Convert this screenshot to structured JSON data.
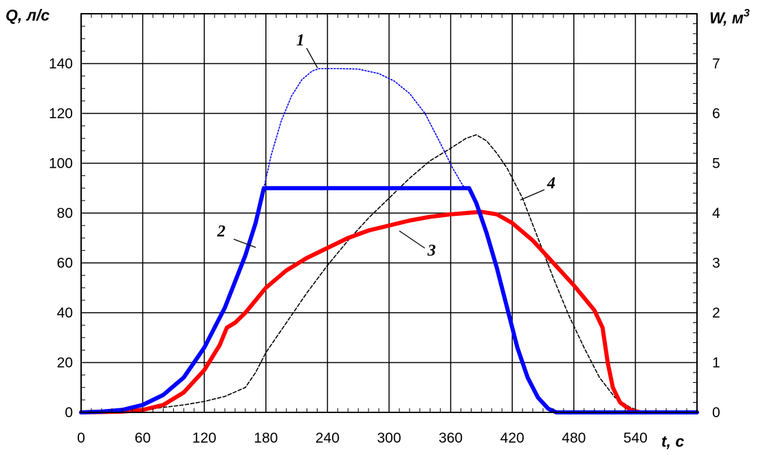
{
  "chart_data": {
    "type": "line",
    "title": "",
    "y_left_label": "Q, л/с",
    "y_right_label_base": "W, м",
    "y_right_label_sup": "3",
    "x_label": "t, с",
    "x_ticks": [
      "0",
      "60",
      "120",
      "180",
      "240",
      "300",
      "360",
      "420",
      "480",
      "540"
    ],
    "y_left_ticks": [
      "0",
      "20",
      "40",
      "60",
      "80",
      "100",
      "120",
      "140"
    ],
    "y_right_ticks": [
      "0",
      "1",
      "2",
      "3",
      "4",
      "5",
      "6",
      "7"
    ],
    "xlim": [
      0,
      600
    ],
    "ylim_left": [
      0,
      160
    ],
    "ylim_right": [
      0,
      8
    ],
    "grid": true,
    "series": [
      {
        "name": "1",
        "axis": "left",
        "color": "#0000ff",
        "style": "dotted-thin",
        "points": [
          [
            178,
            90
          ],
          [
            185,
            103
          ],
          [
            195,
            117
          ],
          [
            205,
            127
          ],
          [
            215,
            133.5
          ],
          [
            225,
            137
          ],
          [
            232,
            138
          ],
          [
            250,
            138
          ],
          [
            270,
            137.8
          ],
          [
            290,
            136
          ],
          [
            305,
            133
          ],
          [
            320,
            128
          ],
          [
            335,
            120
          ],
          [
            350,
            108
          ],
          [
            362,
            98
          ],
          [
            372,
            91
          ],
          [
            382,
            88
          ]
        ]
      },
      {
        "name": "2",
        "axis": "left",
        "color": "#0000ff",
        "style": "solid-thick",
        "points": [
          [
            0,
            0
          ],
          [
            20,
            0.3
          ],
          [
            40,
            1
          ],
          [
            60,
            3
          ],
          [
            80,
            7
          ],
          [
            100,
            14
          ],
          [
            120,
            26
          ],
          [
            140,
            42
          ],
          [
            160,
            63
          ],
          [
            170,
            76
          ],
          [
            178,
            90
          ],
          [
            240,
            90
          ],
          [
            300,
            90
          ],
          [
            340,
            90
          ],
          [
            378,
            90
          ],
          [
            385,
            84
          ],
          [
            395,
            72
          ],
          [
            405,
            58
          ],
          [
            415,
            42
          ],
          [
            425,
            26
          ],
          [
            435,
            14
          ],
          [
            445,
            6
          ],
          [
            455,
            1.5
          ],
          [
            463,
            0
          ],
          [
            600,
            0
          ]
        ]
      },
      {
        "name": "3",
        "axis": "left",
        "color": "#ff0000",
        "style": "solid-thick",
        "points": [
          [
            0,
            0
          ],
          [
            40,
            0.3
          ],
          [
            60,
            1
          ],
          [
            80,
            3
          ],
          [
            100,
            8
          ],
          [
            120,
            17
          ],
          [
            135,
            27
          ],
          [
            142,
            34
          ],
          [
            150,
            36
          ],
          [
            160,
            40
          ],
          [
            170,
            45
          ],
          [
            180,
            50
          ],
          [
            200,
            57
          ],
          [
            220,
            62
          ],
          [
            240,
            66
          ],
          [
            260,
            70
          ],
          [
            280,
            73
          ],
          [
            300,
            75
          ],
          [
            320,
            77
          ],
          [
            340,
            78.5
          ],
          [
            360,
            79.5
          ],
          [
            375,
            80
          ],
          [
            390,
            80.5
          ],
          [
            405,
            79.5
          ],
          [
            420,
            76
          ],
          [
            440,
            69
          ],
          [
            460,
            60
          ],
          [
            480,
            51
          ],
          [
            500,
            41
          ],
          [
            508,
            34
          ],
          [
            513,
            20
          ],
          [
            518,
            10
          ],
          [
            525,
            4
          ],
          [
            535,
            1
          ],
          [
            545,
            0
          ],
          [
            600,
            0
          ]
        ]
      },
      {
        "name": "4",
        "axis": "right",
        "color": "#000000",
        "style": "dashed-thin",
        "points": [
          [
            0,
            0
          ],
          [
            40,
            0.02
          ],
          [
            60,
            0.05
          ],
          [
            80,
            0.1
          ],
          [
            100,
            0.15
          ],
          [
            120,
            0.22
          ],
          [
            140,
            0.32
          ],
          [
            160,
            0.5
          ],
          [
            170,
            0.8
          ],
          [
            180,
            1.2
          ],
          [
            200,
            1.8
          ],
          [
            220,
            2.4
          ],
          [
            240,
            2.95
          ],
          [
            260,
            3.45
          ],
          [
            280,
            3.9
          ],
          [
            300,
            4.3
          ],
          [
            320,
            4.7
          ],
          [
            340,
            5.05
          ],
          [
            360,
            5.3
          ],
          [
            375,
            5.5
          ],
          [
            385,
            5.57
          ],
          [
            395,
            5.45
          ],
          [
            405,
            5.2
          ],
          [
            415,
            4.9
          ],
          [
            430,
            4.3
          ],
          [
            445,
            3.5
          ],
          [
            460,
            2.7
          ],
          [
            475,
            1.95
          ],
          [
            490,
            1.3
          ],
          [
            505,
            0.7
          ],
          [
            520,
            0.3
          ],
          [
            535,
            0.1
          ],
          [
            545,
            0.02
          ],
          [
            560,
            0
          ],
          [
            600,
            0
          ]
        ]
      }
    ]
  }
}
